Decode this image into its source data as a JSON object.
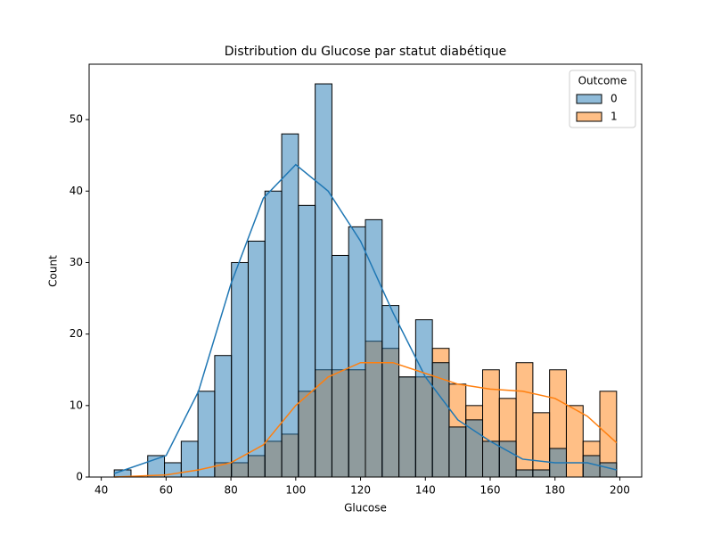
{
  "chart_data": {
    "type": "histogram",
    "title": "Distribution du Glucose par statut diabétique",
    "x_label": "Glucose",
    "y_label": "Count",
    "legend_title": "Outcome",
    "legend_position": "upper right",
    "bins": [
      44,
      49.17,
      54.33,
      59.5,
      64.67,
      69.83,
      75,
      80.17,
      85.33,
      90.5,
      95.67,
      100.83,
      106,
      111.17,
      116.33,
      121.5,
      126.67,
      131.83,
      137,
      142.17,
      147.33,
      152.5,
      157.67,
      162.83,
      168,
      173.17,
      178.33,
      183.5,
      188.67,
      193.83,
      199
    ],
    "series": [
      {
        "name": "0",
        "color": "#1f77b4",
        "values": [
          1,
          0,
          3,
          2,
          5,
          12,
          17,
          30,
          33,
          40,
          48,
          38,
          55,
          31,
          35,
          36,
          24,
          14,
          22,
          16,
          7,
          8,
          5,
          5,
          1,
          1,
          4,
          0,
          3,
          2
        ],
        "kde": [
          0.5,
          3,
          12,
          27,
          39,
          43.7,
          40,
          33,
          23,
          14,
          8,
          5,
          2.5,
          2,
          2,
          1
        ]
      },
      {
        "name": "1",
        "color": "#ff7f0e",
        "values": [
          0,
          0,
          0,
          0,
          0,
          0,
          2,
          2,
          3,
          5,
          6,
          12,
          15,
          15,
          15,
          19,
          18,
          14,
          14,
          18,
          13,
          10,
          15,
          11,
          16,
          9,
          15,
          10,
          5,
          12
        ],
        "kde": [
          0,
          0.3,
          1,
          2,
          4.5,
          10,
          14,
          16,
          16,
          14.5,
          13,
          12.3,
          12,
          11,
          8.5,
          4.8
        ]
      }
    ],
    "kde_x": [
      44,
      60,
      70,
      80,
      90,
      100,
      110,
      120,
      130,
      140,
      150,
      160,
      170,
      180,
      190,
      199
    ],
    "xlim": [
      36.25,
      206.75
    ],
    "ylim": [
      0,
      57.75
    ],
    "xticks": [
      40,
      60,
      80,
      100,
      120,
      140,
      160,
      180,
      200
    ],
    "yticks": [
      0,
      10,
      20,
      30,
      40,
      50
    ]
  }
}
